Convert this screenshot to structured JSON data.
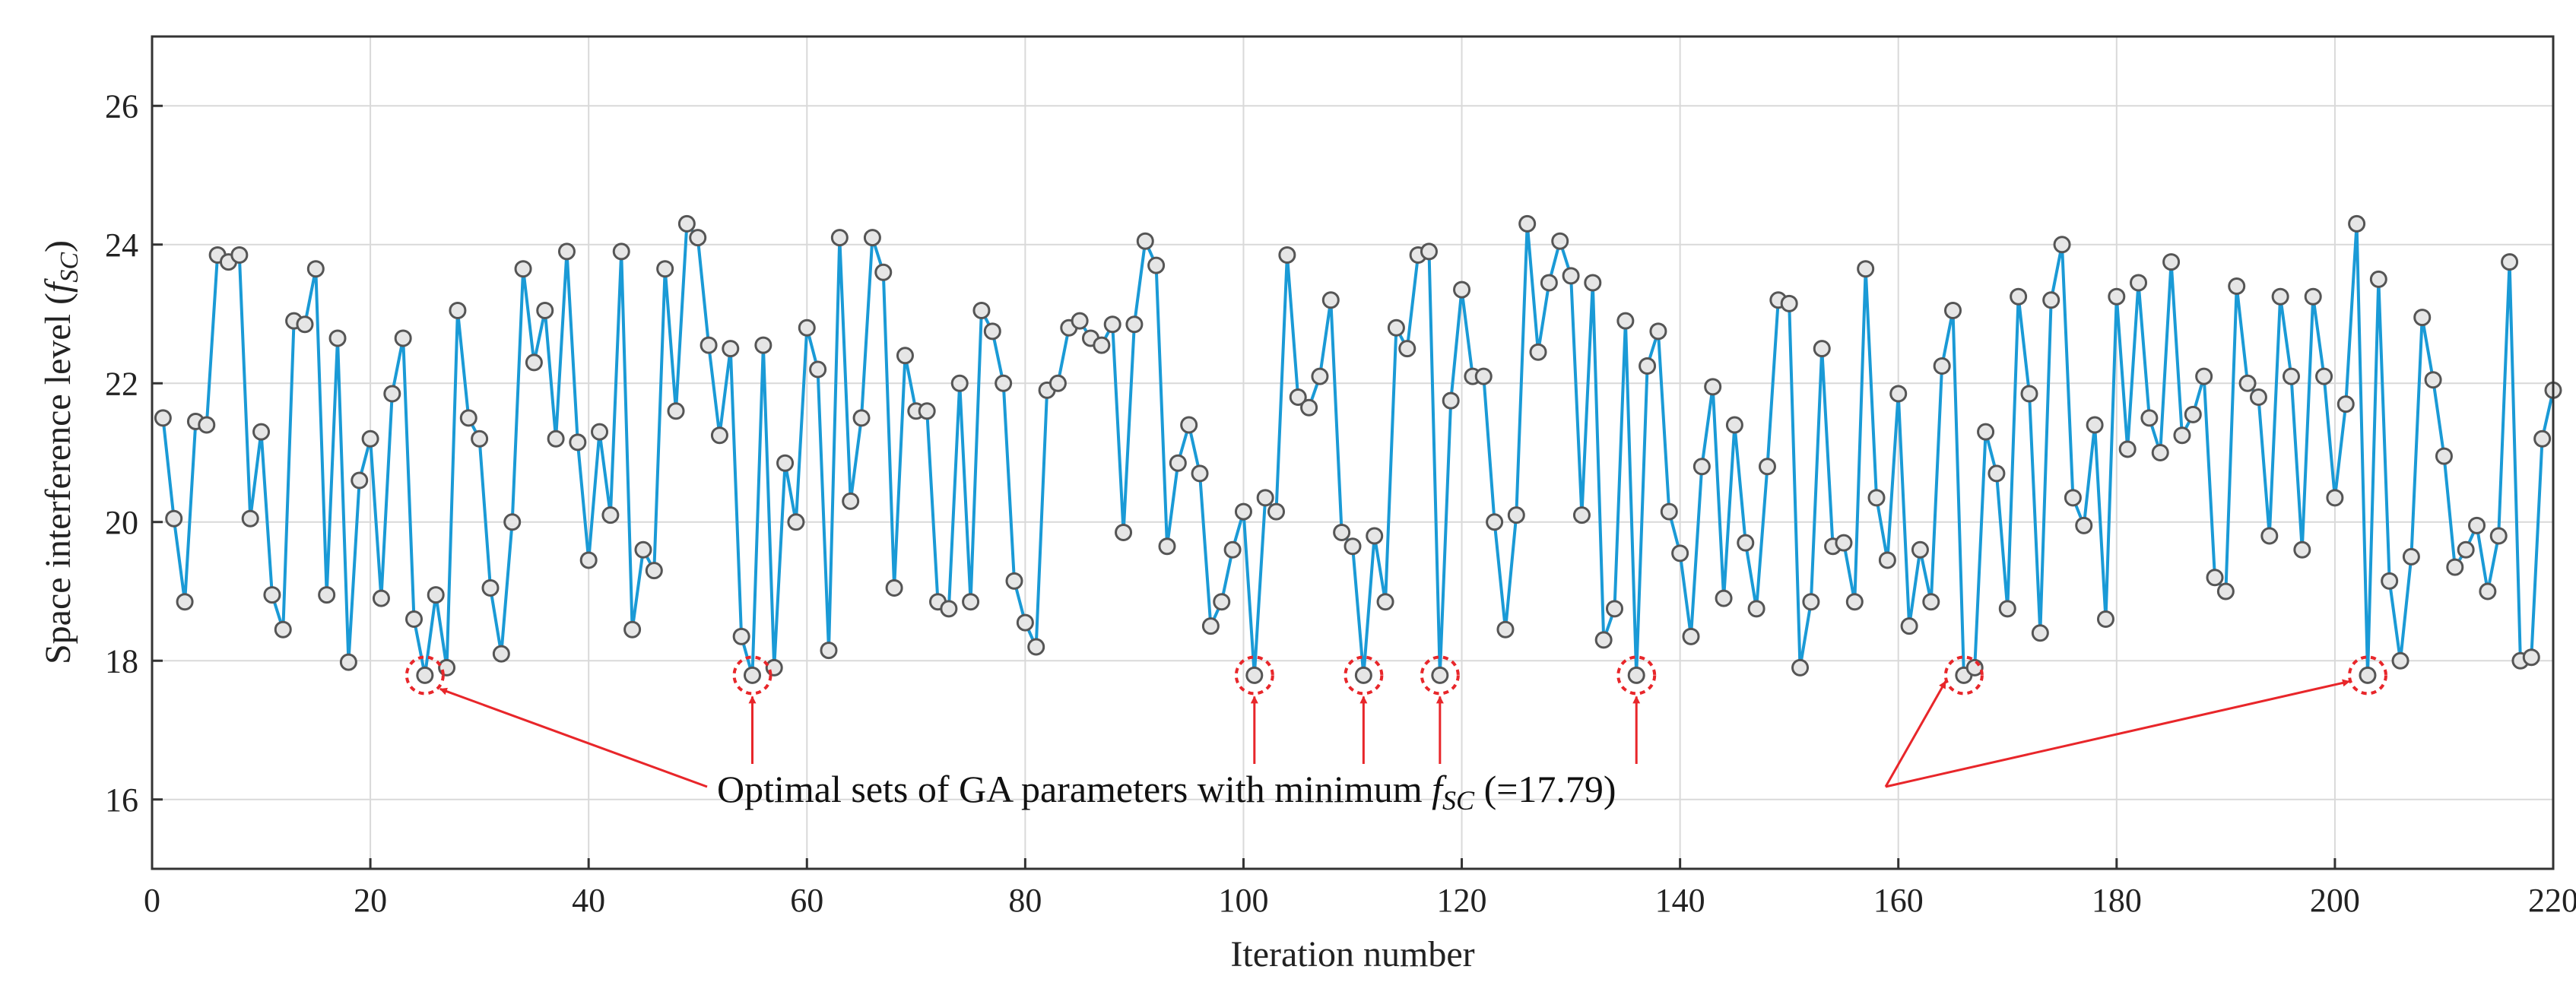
{
  "chart_data": {
    "type": "line",
    "title": "",
    "xlabel": "Iteration number",
    "ylabel_main": "Space interference level (",
    "ylabel_var": "f",
    "ylabel_sub": "SC",
    "ylabel_close": ")",
    "xlim": [
      0,
      220
    ],
    "ylim": [
      15,
      27
    ],
    "xticks": [
      0,
      20,
      40,
      60,
      80,
      100,
      120,
      140,
      160,
      180,
      200,
      220
    ],
    "yticks": [
      16,
      18,
      20,
      22,
      24,
      26
    ],
    "grid": true,
    "colors": {
      "line": "#1a9ad6",
      "marker_fill": "#e6e6e6",
      "marker_edge": "#555555",
      "highlight": "#e8262a",
      "axis": "#333333"
    },
    "series": [
      {
        "name": "Space interference level",
        "x": [
          1,
          2,
          3,
          4,
          5,
          6,
          7,
          8,
          9,
          10,
          11,
          12,
          13,
          14,
          15,
          16,
          17,
          18,
          19,
          20,
          21,
          22,
          23,
          24,
          25,
          26,
          27,
          28,
          29,
          30,
          31,
          32,
          33,
          34,
          35,
          36,
          37,
          38,
          39,
          40,
          41,
          42,
          43,
          44,
          45,
          46,
          47,
          48,
          49,
          50,
          51,
          52,
          53,
          54,
          55,
          56,
          57,
          58,
          59,
          60,
          61,
          62,
          63,
          64,
          65,
          66,
          67,
          68,
          69,
          70,
          71,
          72,
          73,
          74,
          75,
          76,
          77,
          78,
          79,
          80,
          81,
          82,
          83,
          84,
          85,
          86,
          87,
          88,
          89,
          90,
          91,
          92,
          93,
          94,
          95,
          96,
          97,
          98,
          99,
          100,
          101,
          102,
          103,
          104,
          105,
          106,
          107,
          108,
          109,
          110,
          111,
          112,
          113,
          114,
          115,
          116,
          117,
          118,
          119,
          120,
          121,
          122,
          123,
          124,
          125,
          126,
          127,
          128,
          129,
          130,
          131,
          132,
          133,
          134,
          135,
          136,
          137,
          138,
          139,
          140,
          141,
          142,
          143,
          144,
          145,
          146,
          147,
          148,
          149,
          150,
          151,
          152,
          153,
          154,
          155,
          156,
          157,
          158,
          159,
          160,
          161,
          162,
          163,
          164,
          165,
          166,
          167,
          168,
          169,
          170,
          171,
          172,
          173,
          174,
          175,
          176,
          177,
          178,
          179,
          180,
          181,
          182,
          183,
          184,
          185,
          186,
          187,
          188,
          189,
          190,
          191,
          192,
          193,
          194,
          195,
          196,
          197,
          198,
          199,
          200,
          201,
          202,
          203,
          204,
          205,
          206,
          207,
          208,
          209,
          210,
          211,
          212,
          213,
          214,
          215,
          216,
          217,
          218,
          219,
          220
        ],
        "y": [
          21.5,
          20.05,
          18.85,
          21.45,
          21.4,
          23.85,
          23.75,
          23.85,
          20.05,
          21.3,
          18.95,
          18.45,
          22.9,
          22.85,
          23.65,
          18.95,
          22.65,
          17.98,
          20.6,
          21.2,
          18.9,
          21.85,
          22.65,
          18.6,
          17.79,
          18.95,
          17.9,
          23.05,
          21.5,
          21.2,
          19.05,
          18.1,
          20.0,
          23.65,
          22.3,
          23.05,
          21.2,
          23.9,
          21.15,
          19.45,
          21.3,
          20.1,
          23.9,
          18.45,
          19.6,
          19.3,
          23.65,
          21.6,
          24.3,
          24.1,
          22.55,
          21.25,
          22.5,
          18.35,
          17.79,
          22.55,
          17.9,
          20.85,
          20.0,
          22.8,
          22.2,
          18.15,
          24.1,
          20.3,
          21.5,
          24.1,
          23.6,
          19.05,
          22.4,
          21.6,
          21.6,
          18.85,
          18.75,
          22.0,
          18.85,
          23.05,
          22.75,
          22.0,
          19.15,
          18.55,
          18.2,
          21.9,
          22.0,
          22.8,
          22.9,
          22.65,
          22.55,
          22.85,
          19.85,
          22.85,
          24.05,
          23.7,
          19.65,
          20.85,
          21.4,
          20.7,
          18.5,
          18.85,
          19.6,
          20.15,
          17.79,
          20.35,
          20.15,
          23.85,
          21.8,
          21.65,
          22.1,
          23.2,
          19.85,
          19.65,
          17.79,
          19.8,
          18.85,
          22.8,
          22.5,
          23.85,
          23.9,
          17.79,
          21.75,
          23.35,
          22.1,
          22.1,
          20.0,
          18.45,
          20.1,
          24.3,
          22.45,
          23.45,
          24.05,
          23.55,
          20.1,
          23.45,
          18.3,
          18.75,
          22.9,
          17.79,
          22.25,
          22.75,
          20.15,
          19.55,
          18.35,
          20.8,
          21.95,
          18.9,
          21.4,
          19.7,
          18.75,
          20.8,
          23.2,
          23.15,
          17.9,
          18.85,
          22.5,
          19.65,
          19.7,
          18.85,
          23.65,
          20.35,
          19.45,
          21.85,
          18.5,
          19.6,
          18.85,
          22.25,
          23.05,
          17.79,
          17.9,
          21.3,
          20.7,
          18.75,
          23.25,
          21.85,
          18.4,
          23.2,
          24.0,
          20.35,
          19.95,
          21.4,
          18.6,
          23.25,
          21.05,
          23.45,
          21.5,
          21.0,
          23.75,
          21.25,
          21.55,
          22.1,
          19.2,
          19.0,
          23.4,
          22.0,
          21.8,
          19.8,
          23.25,
          22.1,
          19.6,
          23.25,
          22.1,
          20.35,
          21.7,
          24.3,
          17.79,
          23.5,
          19.15,
          18.0,
          19.5,
          22.95,
          22.05,
          20.95,
          19.35,
          19.6,
          19.95,
          19.0,
          19.8,
          23.75,
          18.0,
          18.05,
          21.2,
          21.9
        ]
      }
    ],
    "highlighted_x": [
      25,
      55,
      101,
      111,
      118,
      136,
      166,
      203
    ],
    "min_value": 17.79,
    "annotation": {
      "prefix": "Optimal sets of GA parameters with minimum ",
      "var": "f",
      "sub": "SC",
      "suffix": " (=17.79)"
    }
  }
}
